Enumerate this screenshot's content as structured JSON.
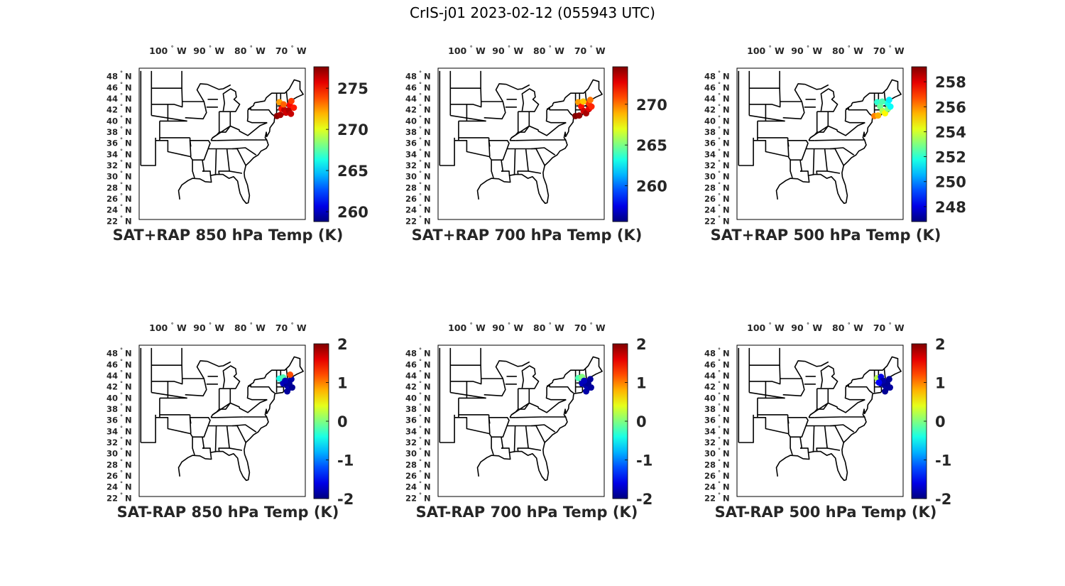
{
  "figure": {
    "title": "CrIS-j01 2023-02-12 (055943 UTC)"
  },
  "colormap": "jet",
  "axes": {
    "lon_ticks": [
      {
        "value": -100,
        "label": "100",
        "hemi": "W"
      },
      {
        "value": -90,
        "label": "90",
        "hemi": "W"
      },
      {
        "value": -80,
        "label": "80",
        "hemi": "W"
      },
      {
        "value": -70,
        "label": "70",
        "hemi": "W"
      }
    ],
    "lat_ticks": [
      {
        "value": 48,
        "label": "48",
        "hemi": "N"
      },
      {
        "value": 46,
        "label": "46",
        "hemi": "N"
      },
      {
        "value": 44,
        "label": "44",
        "hemi": "N"
      },
      {
        "value": 42,
        "label": "42",
        "hemi": "N"
      },
      {
        "value": 40,
        "label": "40",
        "hemi": "N"
      },
      {
        "value": 38,
        "label": "38",
        "hemi": "N"
      },
      {
        "value": 36,
        "label": "36",
        "hemi": "N"
      },
      {
        "value": 34,
        "label": "34",
        "hemi": "N"
      },
      {
        "value": 32,
        "label": "32",
        "hemi": "N"
      },
      {
        "value": 30,
        "label": "30",
        "hemi": "N"
      },
      {
        "value": 28,
        "label": "28",
        "hemi": "N"
      },
      {
        "value": 26,
        "label": "26",
        "hemi": "N"
      },
      {
        "value": 24,
        "label": "24",
        "hemi": "N"
      },
      {
        "value": 22,
        "label": "22",
        "hemi": "N"
      }
    ]
  },
  "panels": [
    {
      "title": "SAT+RAP 850 hPa Temp (K)",
      "cmin": 258.8,
      "cmax": 277.6,
      "ticks": [
        260,
        265,
        270,
        275
      ]
    },
    {
      "title": "SAT+RAP 700 hPa Temp (K)",
      "cmin": 255.6,
      "cmax": 274.6,
      "ticks": [
        260,
        265,
        270
      ]
    },
    {
      "title": "SAT+RAP 500 hPa Temp (K)",
      "cmin": 246.8,
      "cmax": 259.2,
      "ticks": [
        248,
        250,
        252,
        254,
        256,
        258
      ]
    },
    {
      "title": "SAT-RAP 850 hPa Temp (K)",
      "cmin": -2,
      "cmax": 2,
      "ticks": [
        -2,
        -1,
        0,
        1,
        2
      ]
    },
    {
      "title": "SAT-RAP 700 hPa Temp (K)",
      "cmin": -2,
      "cmax": 2,
      "ticks": [
        -2,
        -1,
        0,
        1,
        2
      ]
    },
    {
      "title": "SAT-RAP 500 hPa Temp (K)",
      "cmin": -2,
      "cmax": 2,
      "ticks": [
        -2,
        -1,
        0,
        1,
        2
      ]
    }
  ]
}
